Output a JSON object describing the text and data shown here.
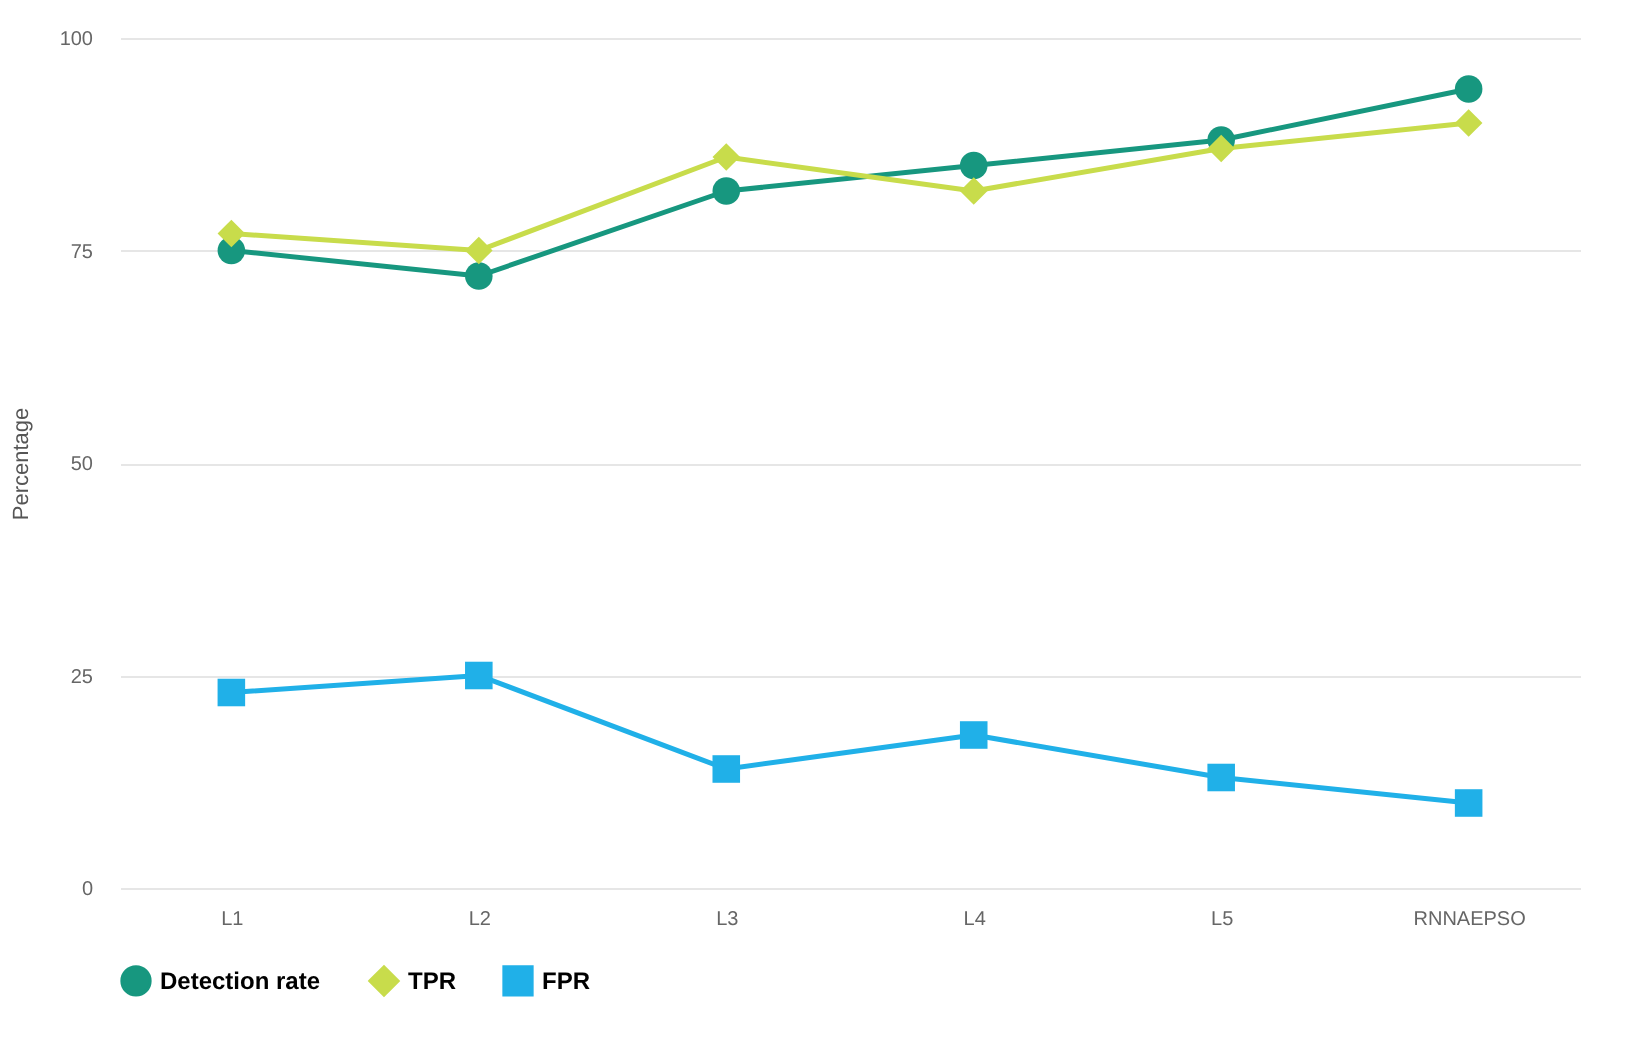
{
  "chart_data": {
    "type": "line",
    "ylabel": "Percentage",
    "categories": [
      "L1",
      "L2",
      "L3",
      "L4",
      "L5",
      "RNNAEPSO"
    ],
    "series": [
      {
        "name": "Detection rate",
        "color": "#17977f",
        "marker": "circle",
        "values": [
          75,
          72,
          82,
          85,
          88,
          94
        ]
      },
      {
        "name": "TPR",
        "color": "#c8dc4b",
        "marker": "diamond",
        "values": [
          77,
          75,
          86,
          82,
          87,
          90
        ]
      },
      {
        "name": "FPR",
        "color": "#20b0e8",
        "marker": "square",
        "values": [
          23,
          25,
          14,
          18,
          13,
          10
        ]
      }
    ],
    "ylim": [
      0,
      100
    ],
    "yticks": [
      0,
      25,
      50,
      75,
      100
    ],
    "grid": "y",
    "legend": "bottom"
  }
}
